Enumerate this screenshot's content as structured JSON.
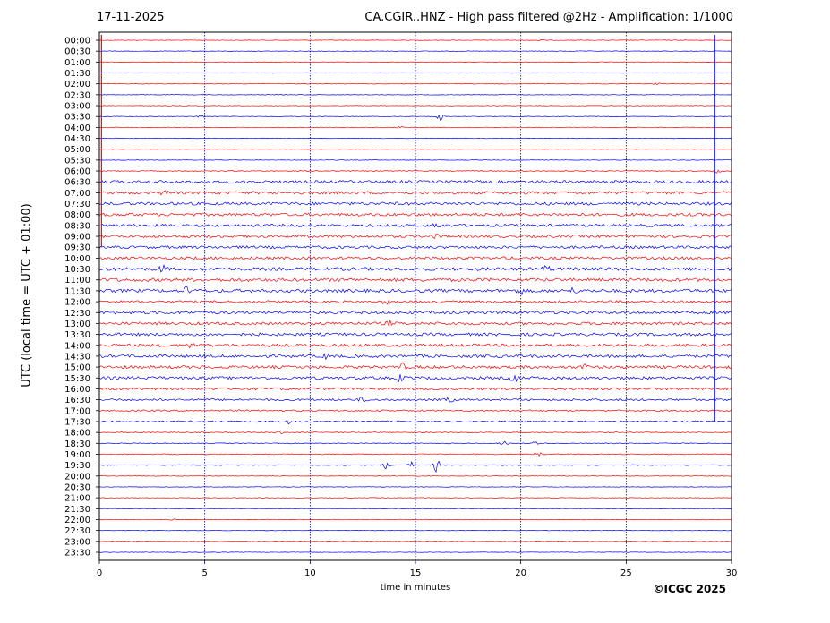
{
  "header": {
    "date": "17-11-2025",
    "title": "CA.CGIR..HNZ - High pass filtered @2Hz - Amplification: 1/1000"
  },
  "footer": {
    "copyright": "©ICGC 2025"
  },
  "colors": {
    "trace_a": "#ff0000",
    "trace_b": "#0000ff",
    "grid": "#000080"
  },
  "chart_data": {
    "type": "line",
    "title": "CA.CGIR..HNZ - High pass filtered @2Hz - Amplification: 1/1000",
    "xlabel": "time in minutes",
    "ylabel": "UTC (local time = UTC + 01:00)",
    "xlim": [
      0,
      30
    ],
    "x_ticks": [
      "0",
      "5",
      "10",
      "15",
      "20",
      "25",
      "30"
    ],
    "rows": [
      "00:00",
      "00:30",
      "01:00",
      "01:30",
      "02:00",
      "02:30",
      "03:00",
      "03:30",
      "04:00",
      "04:30",
      "05:00",
      "05:30",
      "06:00",
      "06:30",
      "07:00",
      "07:30",
      "08:00",
      "08:30",
      "09:00",
      "09:30",
      "10:00",
      "10:30",
      "11:00",
      "11:30",
      "12:00",
      "12:30",
      "13:00",
      "13:30",
      "14:00",
      "14:30",
      "15:00",
      "15:30",
      "16:00",
      "16:30",
      "17:00",
      "17:30",
      "18:00",
      "18:30",
      "19:00",
      "19:30",
      "20:00",
      "20:30",
      "21:00",
      "21:30",
      "22:00",
      "22:30",
      "23:00",
      "23:30"
    ],
    "row_colors": "alternating red / blue starting with red",
    "noise_level": [
      0.3,
      0.3,
      0.3,
      0.3,
      0.3,
      0.3,
      0.3,
      0.3,
      0.3,
      0.3,
      0.3,
      0.3,
      0.5,
      1.6,
      1.6,
      1.6,
      1.6,
      1.5,
      1.5,
      1.5,
      1.5,
      1.8,
      1.8,
      1.8,
      1.3,
      1.6,
      1.6,
      1.6,
      1.6,
      1.6,
      1.6,
      1.6,
      1.3,
      1.2,
      0.9,
      0.9,
      0.5,
      0.5,
      0.5,
      0.5,
      0.3,
      0.3,
      0.3,
      0.3,
      0.3,
      0.3,
      0.3,
      0.3
    ],
    "events": [
      {
        "row": "00:00",
        "t": 20.9,
        "amp": 1
      },
      {
        "row": "02:00",
        "t": 26.5,
        "amp": 2
      },
      {
        "row": "03:30",
        "t": 4.8,
        "amp": 2
      },
      {
        "row": "03:30",
        "t": 16.2,
        "amp": 5
      },
      {
        "row": "04:00",
        "t": 14.2,
        "amp": 1.5
      },
      {
        "row": "06:00",
        "t": 29.3,
        "amp": 3
      },
      {
        "row": "07:00",
        "t": 3.1,
        "amp": 3
      },
      {
        "row": "08:30",
        "t": 16.0,
        "amp": 4
      },
      {
        "row": "09:00",
        "t": 15.9,
        "amp": 3
      },
      {
        "row": "10:30",
        "t": 3.0,
        "amp": 5
      },
      {
        "row": "10:30",
        "t": 21.2,
        "amp": 4
      },
      {
        "row": "11:30",
        "t": 4.2,
        "amp": 5
      },
      {
        "row": "11:30",
        "t": 20.0,
        "amp": 4
      },
      {
        "row": "11:30",
        "t": 22.5,
        "amp": 3
      },
      {
        "row": "12:00",
        "t": 13.6,
        "amp": 3
      },
      {
        "row": "13:00",
        "t": 13.8,
        "amp": 3
      },
      {
        "row": "14:00",
        "t": 4.4,
        "amp": 4
      },
      {
        "row": "14:30",
        "t": 10.8,
        "amp": 3
      },
      {
        "row": "15:00",
        "t": 14.4,
        "amp": 4
      },
      {
        "row": "15:00",
        "t": 23.0,
        "amp": 3
      },
      {
        "row": "15:30",
        "t": 14.3,
        "amp": 4
      },
      {
        "row": "15:30",
        "t": 19.7,
        "amp": 5
      },
      {
        "row": "16:30",
        "t": 12.5,
        "amp": 3
      },
      {
        "row": "16:30",
        "t": 16.6,
        "amp": 3
      },
      {
        "row": "17:30",
        "t": 8.9,
        "amp": 3
      },
      {
        "row": "18:00",
        "t": 8.6,
        "amp": 2
      },
      {
        "row": "18:30",
        "t": 19.2,
        "amp": 3
      },
      {
        "row": "18:30",
        "t": 20.7,
        "amp": 2
      },
      {
        "row": "19:00",
        "t": 20.8,
        "amp": 3
      },
      {
        "row": "19:30",
        "t": 13.6,
        "amp": 4
      },
      {
        "row": "19:30",
        "t": 14.8,
        "amp": 4
      },
      {
        "row": "19:30",
        "t": 16.0,
        "amp": 8
      },
      {
        "row": "22:00",
        "t": 3.5,
        "amp": 1
      }
    ],
    "calibration_marks": [
      {
        "t": 0.1,
        "from": "00:00",
        "to": "09:30",
        "color": "#ff0000"
      },
      {
        "t": 29.2,
        "from": "00:00",
        "to": "17:30",
        "color": "#0000ff"
      }
    ]
  }
}
